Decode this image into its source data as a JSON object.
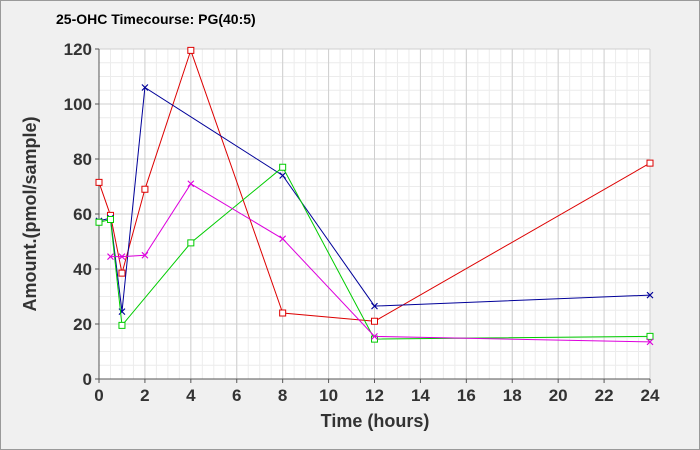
{
  "chart_data": {
    "type": "line",
    "title": "25-OHC Timecourse: PG(40:5)",
    "xlabel": "Time (hours)",
    "ylabel": "Amount.(pmol/sample)",
    "xlim": [
      0,
      24
    ],
    "ylim": [
      0,
      120
    ],
    "x_ticks": [
      0,
      2,
      4,
      6,
      8,
      10,
      12,
      14,
      16,
      18,
      20,
      22,
      24
    ],
    "y_ticks": [
      0,
      20,
      40,
      60,
      80,
      100,
      120
    ],
    "grid": true,
    "legend": "none",
    "series": [
      {
        "color": "#dd0000",
        "marker": "square",
        "x": [
          0,
          0.5,
          1,
          2,
          4,
          8,
          12,
          24
        ],
        "y": [
          71.5,
          59.5,
          38.5,
          69,
          119.5,
          24,
          21,
          78.5
        ]
      },
      {
        "color": "#000099",
        "marker": "x",
        "x": [
          0,
          0.5,
          1,
          2,
          8,
          12,
          24
        ],
        "y": [
          57.5,
          58.5,
          24.5,
          106,
          74,
          26.5,
          30.5
        ]
      },
      {
        "color": "#00cc00",
        "marker": "square",
        "x": [
          0,
          0.5,
          1,
          4,
          8,
          12,
          24
        ],
        "y": [
          57,
          58,
          19.5,
          49.5,
          77,
          14.5,
          15.5
        ]
      },
      {
        "color": "#dd00dd",
        "marker": "x",
        "x": [
          0.5,
          1,
          2,
          4,
          8,
          12,
          24
        ],
        "y": [
          44.5,
          44.5,
          45,
          71,
          51,
          15.5,
          13.5
        ]
      }
    ]
  }
}
